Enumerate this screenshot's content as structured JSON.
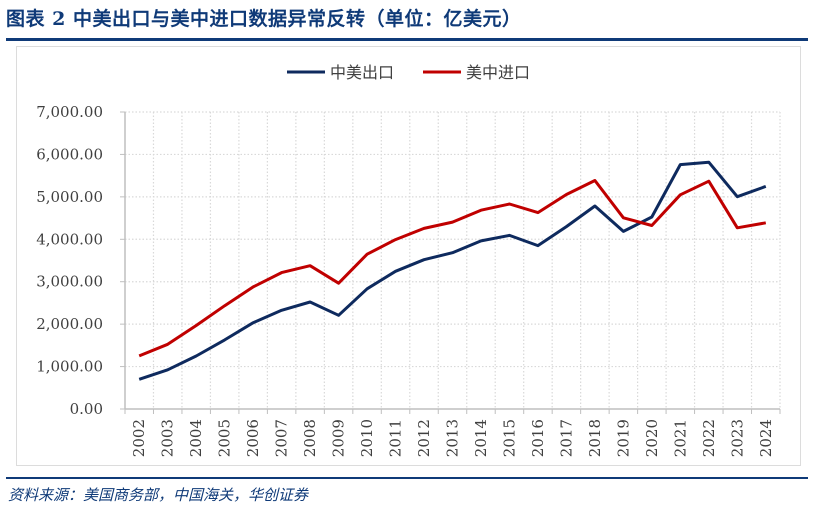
{
  "header": {
    "title": "图表 2 中美出口与美中进口数据异常反转（单位：亿美元）"
  },
  "footer": {
    "source": "资料来源：美国商务部，中国海关，华创证券"
  },
  "colors": {
    "brand_navy": "#0f3a78",
    "series_export": "#0e2a5e",
    "series_import": "#c00000",
    "grid": "#d9d9d9",
    "axis": "#bfbfbf"
  },
  "chart_data": {
    "type": "line",
    "title": "中美出口与美中进口数据异常反转（单位：亿美元）",
    "xlabel": "",
    "ylabel": "",
    "ylim": [
      0,
      7000
    ],
    "yticks": [
      0,
      1000,
      2000,
      3000,
      4000,
      5000,
      6000,
      7000
    ],
    "ytick_labels": [
      "0.00",
      "1,000.00",
      "2,000.00",
      "3,000.00",
      "4,000.00",
      "5,000.00",
      "6,000.00",
      "7,000.00"
    ],
    "grid": true,
    "legend_position": "top",
    "categories": [
      "2002",
      "2003",
      "2004",
      "2005",
      "2006",
      "2007",
      "2008",
      "2009",
      "2010",
      "2011",
      "2012",
      "2013",
      "2014",
      "2015",
      "2016",
      "2017",
      "2018",
      "2019",
      "2020",
      "2021",
      "2022",
      "2023",
      "2024"
    ],
    "series": [
      {
        "name": "中美出口",
        "color": "#0e2a5e",
        "values": [
          699,
          925,
          1250,
          1629,
          2035,
          2327,
          2523,
          2208,
          2833,
          3245,
          3518,
          3684,
          3961,
          4092,
          3851,
          4298,
          4784,
          4187,
          4526,
          5761,
          5817,
          5003,
          5247
        ]
      },
      {
        "name": "美中进口",
        "color": "#c00000",
        "values": [
          1252,
          1524,
          1967,
          2434,
          2878,
          3215,
          3378,
          2964,
          3649,
          3993,
          4256,
          4404,
          4686,
          4832,
          4628,
          5055,
          5385,
          4507,
          4325,
          5048,
          5368,
          4271,
          4389
        ]
      }
    ]
  }
}
